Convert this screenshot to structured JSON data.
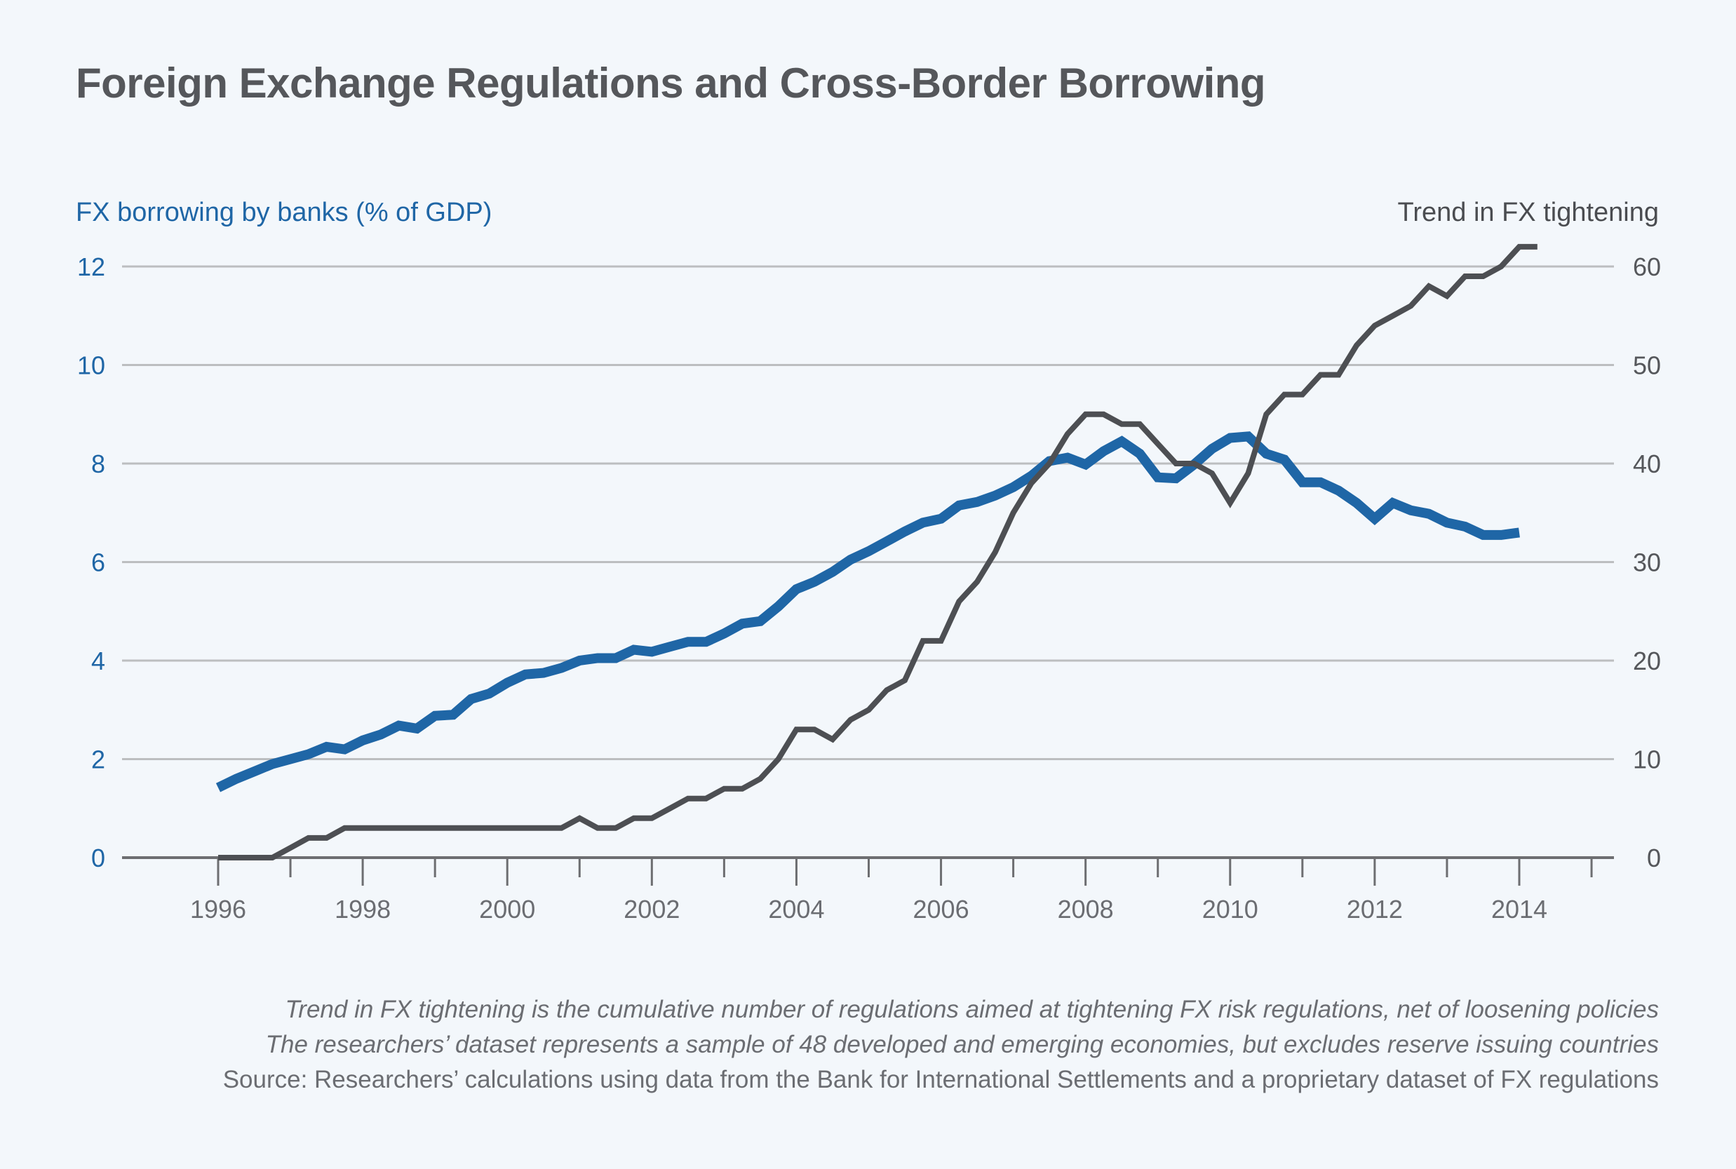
{
  "title": "Foreign Exchange Regulations and Cross-Border Borrowing",
  "notes": [
    "Trend in FX tightening is the cumulative number of regulations aimed at tightening FX risk regulations, net of loosening policies",
    "The researchers’ dataset represents a sample of 48 developed and emerging economies, but excludes reserve issuing countries",
    "Source: Researchers’ calculations using data from the Bank for International Settlements and a proprietary dataset of FX regulations"
  ],
  "colors": {
    "blue": "#1f66a6",
    "gray": "#4d4f53",
    "grid": "#bcbec0",
    "axis": "#6d6e71",
    "background": "#f3f7fb"
  },
  "chart_data": {
    "type": "line",
    "title": "Foreign Exchange Regulations and Cross-Border Borrowing",
    "xlabel": "",
    "ylabel": "FX borrowing by banks (% of GDP)",
    "ylabel_right": "Trend in FX tightening",
    "xlim": [
      1994.75,
      2015.2
    ],
    "ylim": [
      0,
      12
    ],
    "ylim_right": [
      0,
      60
    ],
    "x_ticks": [
      "1996",
      "1998",
      "2000",
      "2002",
      "2004",
      "2006",
      "2008",
      "2010",
      "2012",
      "2014"
    ],
    "x_tick_values": [
      1996,
      1998,
      2000,
      2002,
      2004,
      2006,
      2008,
      2010,
      2012,
      2014
    ],
    "y_ticks": [
      "0",
      "2",
      "4",
      "6",
      "8",
      "10",
      "12"
    ],
    "y_ticks_right": [
      "0",
      "10",
      "20",
      "30",
      "40",
      "50",
      "60"
    ],
    "grid": true,
    "x_start": 1996,
    "x_step": 0.25,
    "series": [
      {
        "name": "FX borrowing by banks (% of GDP)",
        "axis": "left",
        "color": "#1f66a6",
        "values": [
          1.42,
          1.6,
          1.75,
          1.9,
          2.0,
          2.1,
          2.25,
          2.2,
          2.38,
          2.5,
          2.68,
          2.62,
          2.88,
          2.9,
          3.22,
          3.33,
          3.55,
          3.72,
          3.75,
          3.85,
          4.0,
          4.05,
          4.05,
          4.22,
          4.18,
          4.28,
          4.38,
          4.38,
          4.55,
          4.75,
          4.8,
          5.1,
          5.45,
          5.6,
          5.8,
          6.05,
          6.22,
          6.42,
          6.62,
          6.8,
          6.88,
          7.15,
          7.22,
          7.35,
          7.52,
          7.75,
          8.05,
          8.12,
          7.98,
          8.25,
          8.45,
          8.2,
          7.72,
          7.7,
          7.98,
          8.3,
          8.52,
          8.55,
          8.2,
          8.08,
          7.62,
          7.62,
          7.45,
          7.2,
          6.88,
          7.2,
          7.05,
          6.98,
          6.8,
          6.72,
          6.55,
          6.55,
          6.6
        ]
      },
      {
        "name": "Trend in FX tightening",
        "axis": "right",
        "color": "#4d4f53",
        "values": [
          0,
          0,
          0,
          0,
          1,
          2,
          2,
          3,
          3,
          3,
          3,
          3,
          3,
          3,
          3,
          3,
          3,
          3,
          3,
          3,
          4,
          3,
          3,
          4,
          4,
          5,
          6,
          6,
          7,
          7,
          8,
          10,
          13,
          13,
          12,
          14,
          15,
          17,
          18,
          22,
          22,
          26,
          28,
          31,
          35,
          38,
          40,
          43,
          45,
          45,
          44,
          44,
          42,
          40,
          40,
          39,
          36,
          39,
          45,
          47,
          47,
          49,
          49,
          52,
          54,
          55,
          56,
          58,
          57,
          59,
          59,
          60,
          62,
          62
        ]
      }
    ]
  }
}
